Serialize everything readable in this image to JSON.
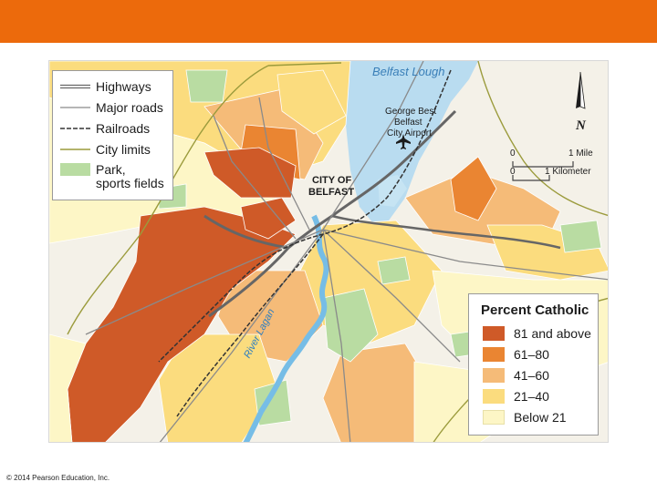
{
  "colors": {
    "header_bar": "#ec6a0c",
    "water": "#b9dcf0",
    "river": "#76bde6",
    "land": "#f4f1e8",
    "park": "#b9dca2",
    "cat_81_above": "#cf5a28",
    "cat_61_80": "#ea8532",
    "cat_41_60": "#f5bb78",
    "cat_21_40": "#fbdc7e",
    "cat_below_21": "#fdf6c6"
  },
  "map": {
    "water_label": "Belfast Lough",
    "airport_label_1": "George Best",
    "airport_label_2": "Belfast",
    "airport_label_3": "City Airport",
    "airport_icon": "airplane-icon",
    "city_label_1": "CITY OF",
    "city_label_2": "BELFAST",
    "river_label": "River Lagan",
    "north_label": "N",
    "north_icon": "north-arrow-icon"
  },
  "scale": {
    "mile_zero": "0",
    "mile_label": "1 Mile",
    "km_zero": "0",
    "km_label": "1 Kilometer"
  },
  "key_legend": {
    "items": [
      {
        "label": "Highways",
        "symbol": "highway"
      },
      {
        "label": "Major roads",
        "symbol": "major-road"
      },
      {
        "label": "Railroads",
        "symbol": "railroad"
      },
      {
        "label": "City limits",
        "symbol": "city-limits"
      },
      {
        "label": "Park,",
        "label2": "sports fields",
        "symbol": "park"
      }
    ]
  },
  "percent_legend": {
    "title": "Percent Catholic",
    "items": [
      {
        "label": "81 and above",
        "color": "#cf5a28"
      },
      {
        "label": "61–80",
        "color": "#ea8532"
      },
      {
        "label": "41–60",
        "color": "#f5bb78"
      },
      {
        "label": "21–40",
        "color": "#fbdc7e"
      },
      {
        "label": "Below 21",
        "color": "#fdf6c6"
      }
    ]
  },
  "footer": {
    "copyright": "© 2014 Pearson Education, Inc."
  }
}
